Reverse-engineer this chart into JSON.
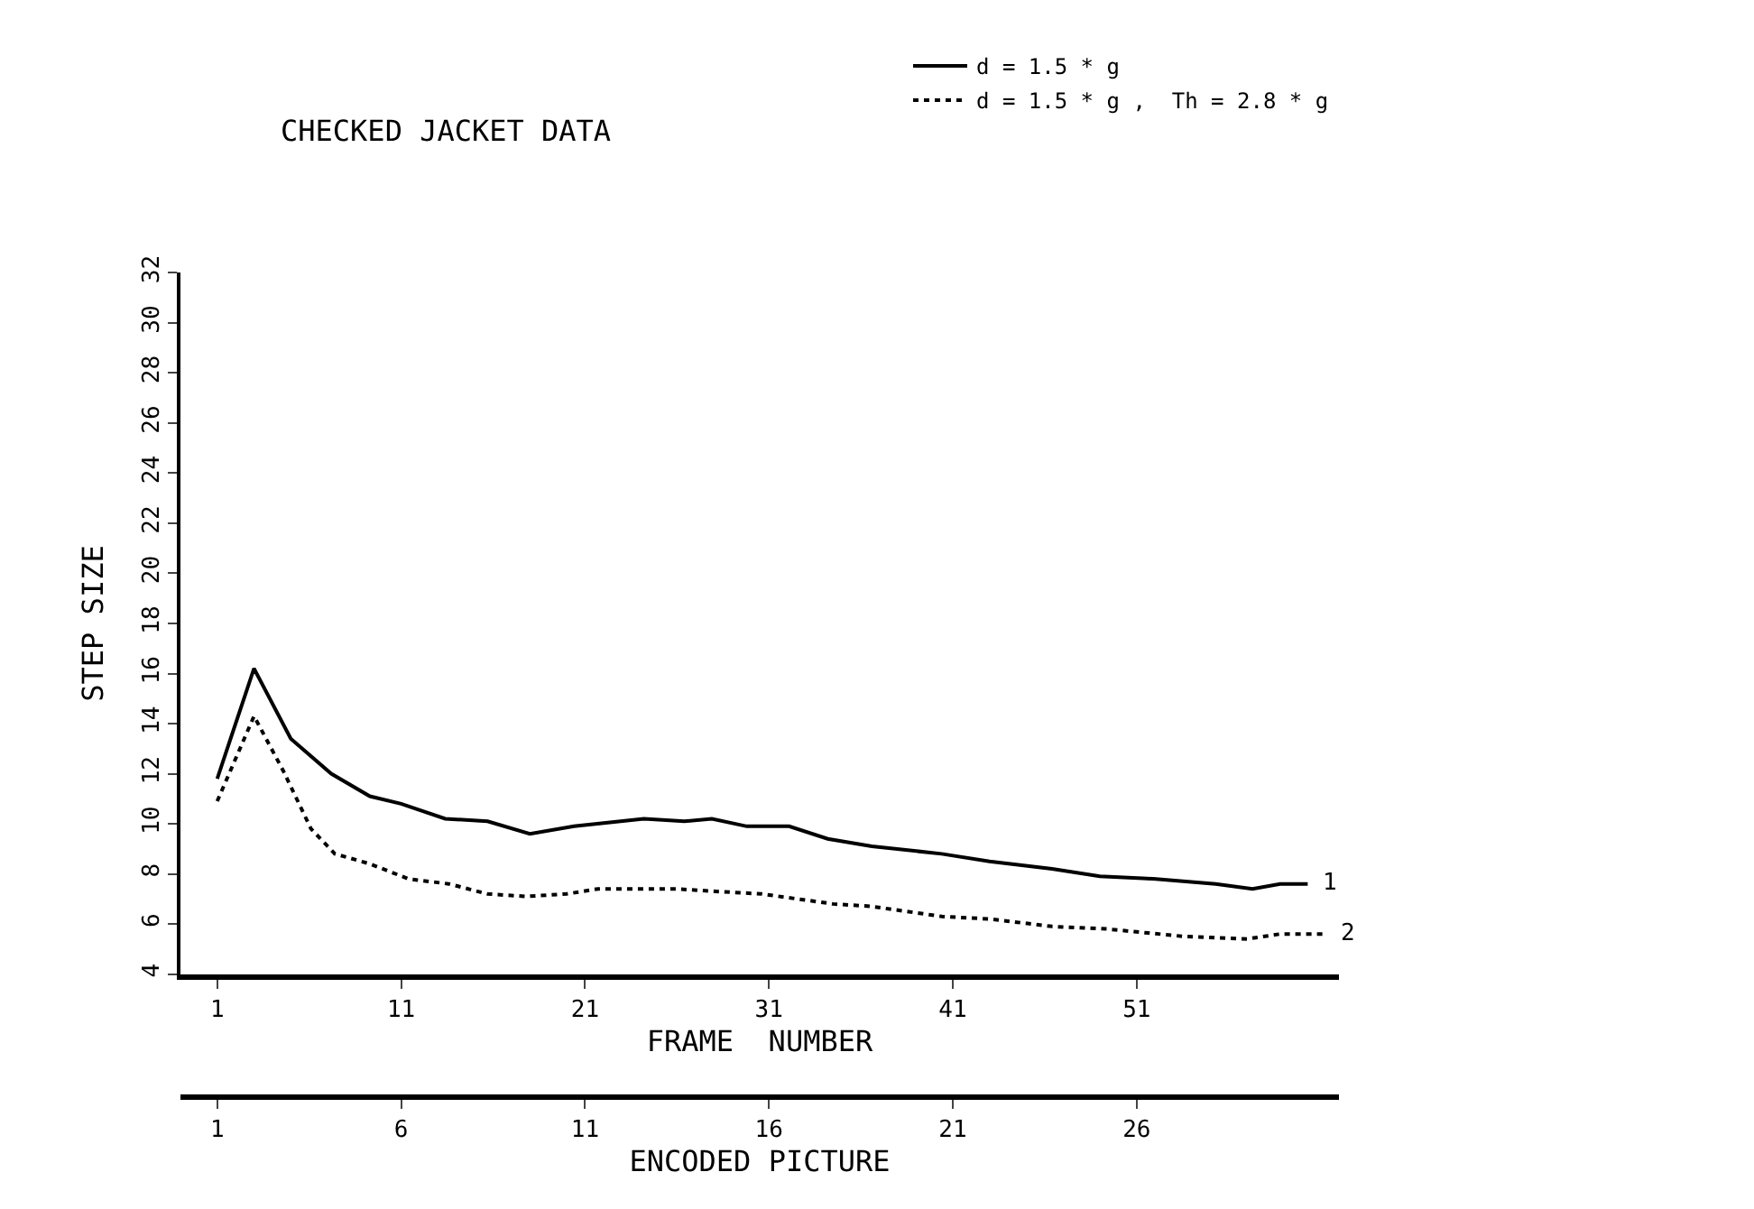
{
  "chart_data": {
    "type": "line",
    "title": "CHECKED JACKET DATA",
    "xlabel": "FRAME  NUMBER",
    "ylabel": "STEP SIZE",
    "x2label": "ENCODED PICTURE",
    "xlim": [
      -1,
      62
    ],
    "xticks": [
      1,
      11,
      21,
      31,
      41,
      51
    ],
    "x2lim": [
      0,
      31.5
    ],
    "x2ticks": [
      1,
      6,
      11,
      16,
      21,
      26
    ],
    "ylim": [
      4,
      32
    ],
    "yticks": [
      4,
      6,
      8,
      10,
      12,
      14,
      16,
      18,
      20,
      22,
      24,
      26,
      28,
      30,
      32
    ],
    "legend": "top right",
    "marker": "none",
    "series": [
      {
        "name": "d = 1.5 * g",
        "color": "#000000",
        "line_style": "solid",
        "x": [
          1,
          3,
          5,
          7.2,
          9.3,
          11,
          13.4,
          15.7,
          18,
          20.4,
          24.2,
          26.4,
          27.9,
          29.8,
          32.1,
          34.2,
          36.6,
          40.4,
          43,
          46.4,
          49,
          51.9,
          55.3,
          57.3,
          58.8,
          60.3
        ],
        "values": [
          11.8,
          16.2,
          13.4,
          12.0,
          11.1,
          10.8,
          10.2,
          10.1,
          9.6,
          9.9,
          10.2,
          10.1,
          10.2,
          9.9,
          9.9,
          9.4,
          9.1,
          8.8,
          8.5,
          8.2,
          7.9,
          7.8,
          7.6,
          7.4,
          7.6,
          7.6
        ]
      },
      {
        "name": "d = 1.5 * g ,  Th = 2.8 * g",
        "color": "#000000",
        "line_style": "dotted",
        "x": [
          1,
          3,
          4.6,
          6.1,
          7.4,
          9.3,
          11.4,
          13.6,
          15.7,
          17.8,
          20,
          21.7,
          26,
          28.1,
          30.6,
          34.5,
          36.6,
          40.4,
          43,
          46.4,
          49.4,
          53.6,
          57,
          58.8,
          61.3
        ],
        "values": [
          10.9,
          14.3,
          12.1,
          9.8,
          8.8,
          8.4,
          7.8,
          7.6,
          7.2,
          7.1,
          7.2,
          7.4,
          7.4,
          7.3,
          7.2,
          6.8,
          6.7,
          6.3,
          6.2,
          5.9,
          5.8,
          5.5,
          5.4,
          5.6,
          5.6
        ]
      }
    ],
    "annotations": [
      {
        "text": "1",
        "x": 60.3,
        "y": 7.6
      },
      {
        "text": "2",
        "x": 61.3,
        "y": 5.6
      }
    ]
  }
}
